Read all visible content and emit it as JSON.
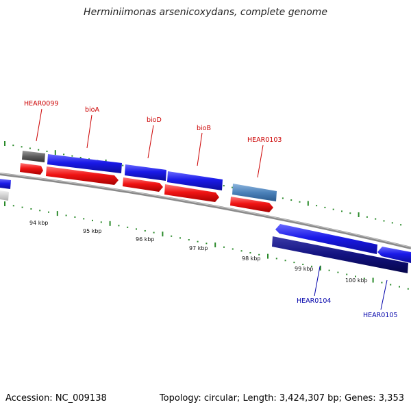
{
  "header": {
    "title": "Herminiimonas arsenicoxydans, complete genome"
  },
  "footer": {
    "accession": "Accession: NC_009138",
    "summary": "Topology: circular; Length: 3,424,307 bp; Genes: 3,353"
  },
  "colors": {
    "forward_gene": "#1515e0",
    "forward_cds": "#ee1111",
    "reverse_gene": "#101080",
    "other_gene_dark": "#555555",
    "other_gene_light": "#4f86bd",
    "backbone": "#808080",
    "ticks": "#2a8a2a",
    "label_red": "#cc0000",
    "label_blue": "#0000aa"
  },
  "scale": {
    "tick_labels": [
      "94 kbp",
      "95 kbp",
      "96 kbp",
      "97 kbp",
      "98 kbp",
      "99 kbp",
      "100 kbp"
    ]
  },
  "gene_labels": [
    {
      "id": "HEAR0099",
      "text": "HEAR0099",
      "color": "label_red"
    },
    {
      "id": "bioA",
      "text": "bioA",
      "color": "label_red"
    },
    {
      "id": "bioD",
      "text": "bioD",
      "color": "label_red"
    },
    {
      "id": "bioB",
      "text": "bioB",
      "color": "label_red"
    },
    {
      "id": "HEAR0103",
      "text": "HEAR0103",
      "color": "label_red"
    },
    {
      "id": "HEAR0104",
      "text": "HEAR0104",
      "color": "label_blue"
    },
    {
      "id": "HEAR0105",
      "text": "HEAR0105",
      "color": "label_blue"
    }
  ]
}
